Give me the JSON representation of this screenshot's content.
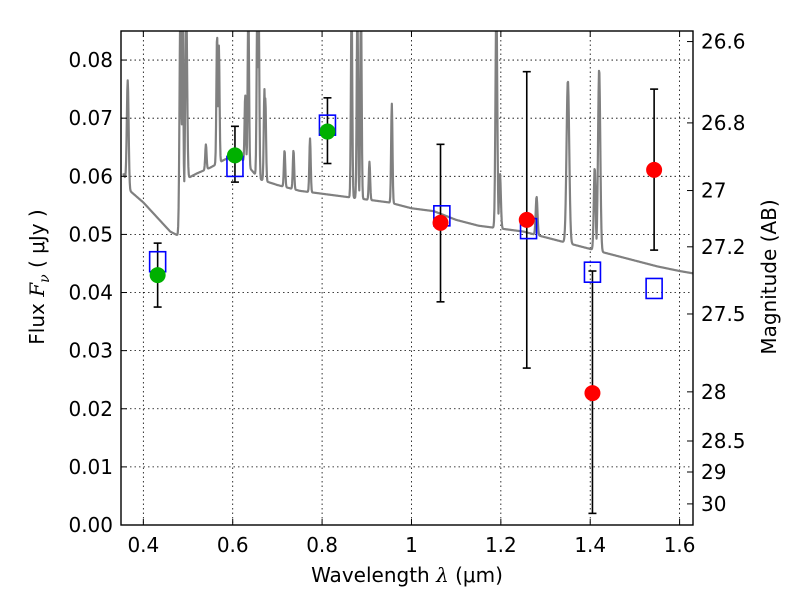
{
  "chart_data": {
    "type": "scatter",
    "xlabel": {
      "prefix": "Wavelength  ",
      "symbol": "λ",
      "suffix": " (μm)"
    },
    "ylabel": {
      "prefix": "Flux  ",
      "symbol": "F",
      "sub": "ν",
      "suffix": "  ( μJy )"
    },
    "y2label": "Magnitude (AB)",
    "xlim": [
      0.35,
      1.63
    ],
    "ylim": [
      0.0,
      0.085
    ],
    "grid": true,
    "x_ticks": [
      {
        "value": 0.4,
        "label": "0.4"
      },
      {
        "value": 0.6,
        "label": "0.6"
      },
      {
        "value": 0.8,
        "label": "0.8"
      },
      {
        "value": 1.0,
        "label": "1"
      },
      {
        "value": 1.2,
        "label": "1.2"
      },
      {
        "value": 1.4,
        "label": "1.4"
      },
      {
        "value": 1.6,
        "label": "1.6"
      }
    ],
    "y_ticks": [
      {
        "value": 0.0,
        "label": "0.00"
      },
      {
        "value": 0.01,
        "label": "0.01"
      },
      {
        "value": 0.02,
        "label": "0.02"
      },
      {
        "value": 0.03,
        "label": "0.03"
      },
      {
        "value": 0.04,
        "label": "0.04"
      },
      {
        "value": 0.05,
        "label": "0.05"
      },
      {
        "value": 0.06,
        "label": "0.06"
      },
      {
        "value": 0.07,
        "label": "0.07"
      },
      {
        "value": 0.08,
        "label": "0.08"
      }
    ],
    "y2_ticks": [
      {
        "mag": 26.6,
        "label": "26.6"
      },
      {
        "mag": 26.8,
        "label": "26.8"
      },
      {
        "mag": 27.0,
        "label": "27"
      },
      {
        "mag": 27.2,
        "label": "27.2"
      },
      {
        "mag": 27.5,
        "label": "27.5"
      },
      {
        "mag": 28.0,
        "label": "28"
      },
      {
        "mag": 28.5,
        "label": "28.5"
      },
      {
        "mag": 29.0,
        "label": "29"
      },
      {
        "mag": 30.0,
        "label": "30"
      }
    ],
    "series": [
      {
        "name": "model spectrum",
        "kind": "line",
        "color": "#808080",
        "continuum": [
          [
            0.355,
            0.0605
          ],
          [
            0.37,
            0.0575
          ],
          [
            0.4,
            0.0555
          ],
          [
            0.43,
            0.053
          ],
          [
            0.46,
            0.0505
          ],
          [
            0.485,
            0.0495
          ],
          [
            0.495,
            0.0595
          ],
          [
            0.52,
            0.0605
          ],
          [
            0.55,
            0.0615
          ],
          [
            0.58,
            0.0628
          ],
          [
            0.6,
            0.0635
          ],
          [
            0.62,
            0.063
          ],
          [
            0.66,
            0.0595
          ],
          [
            0.7,
            0.0585
          ],
          [
            0.75,
            0.0575
          ],
          [
            0.8,
            0.057
          ],
          [
            0.85,
            0.0565
          ],
          [
            0.9,
            0.056
          ],
          [
            0.95,
            0.0555
          ],
          [
            1.0,
            0.0545
          ],
          [
            1.05,
            0.054
          ],
          [
            1.1,
            0.0525
          ],
          [
            1.15,
            0.0515
          ],
          [
            1.2,
            0.051
          ],
          [
            1.25,
            0.0505
          ],
          [
            1.3,
            0.0495
          ],
          [
            1.35,
            0.0485
          ],
          [
            1.4,
            0.0475
          ],
          [
            1.45,
            0.0465
          ],
          [
            1.5,
            0.0455
          ],
          [
            1.55,
            0.0445
          ],
          [
            1.6,
            0.0437
          ],
          [
            1.63,
            0.0433
          ]
        ],
        "lines": [
          [
            0.365,
            0.0765,
            0.004
          ],
          [
            0.483,
            0.09,
            0.004
          ],
          [
            0.488,
            0.09,
            0.003
          ],
          [
            0.496,
            0.09,
            0.004
          ],
          [
            0.54,
            0.0655,
            0.003
          ],
          [
            0.565,
            0.0845,
            0.003
          ],
          [
            0.569,
            0.0825,
            0.003
          ],
          [
            0.628,
            0.074,
            0.003
          ],
          [
            0.635,
            0.09,
            0.003
          ],
          [
            0.655,
            0.09,
            0.003
          ],
          [
            0.658,
            0.09,
            0.003
          ],
          [
            0.671,
            0.075,
            0.003
          ],
          [
            0.673,
            0.0735,
            0.003
          ],
          [
            0.716,
            0.0645,
            0.003
          ],
          [
            0.736,
            0.0645,
            0.003
          ],
          [
            0.773,
            0.0665,
            0.003
          ],
          [
            0.866,
            0.09,
            0.003
          ],
          [
            0.879,
            0.09,
            0.003
          ],
          [
            0.887,
            0.09,
            0.003
          ],
          [
            0.906,
            0.0625,
            0.003
          ],
          [
            0.956,
            0.0725,
            0.003
          ],
          [
            1.19,
            0.09,
            0.004
          ],
          [
            1.198,
            0.0605,
            0.004
          ],
          [
            1.28,
            0.0565,
            0.004
          ],
          [
            1.35,
            0.0765,
            0.006
          ],
          [
            1.41,
            0.0615,
            0.004
          ],
          [
            1.42,
            0.0785,
            0.005
          ]
        ]
      },
      {
        "name": "blue squares",
        "kind": "open-square",
        "color": "#0000ff",
        "x": [
          0.432,
          0.605,
          0.812,
          1.068,
          1.262,
          1.405,
          1.543
        ],
        "y": [
          0.0453,
          0.0617,
          0.0688,
          0.0532,
          0.051,
          0.0435,
          0.0407
        ]
      },
      {
        "name": "green points",
        "kind": "filled-circle",
        "color": "#00b000",
        "x": [
          0.432,
          0.605,
          0.812
        ],
        "y": [
          0.043,
          0.0636,
          0.0677
        ],
        "yerr_low": [
          0.0375,
          0.059,
          0.0622
        ],
        "yerr_high": [
          0.0485,
          0.0686,
          0.0735
        ]
      },
      {
        "name": "red points",
        "kind": "filled-circle",
        "color": "#ff0000",
        "x": [
          1.065,
          1.258,
          1.405,
          1.543
        ],
        "y": [
          0.052,
          0.0525,
          0.0227,
          0.0611
        ],
        "yerr_low": [
          0.0384,
          0.027,
          0.002,
          0.0473
        ],
        "yerr_high": [
          0.0655,
          0.078,
          0.0437,
          0.075
        ]
      }
    ]
  }
}
